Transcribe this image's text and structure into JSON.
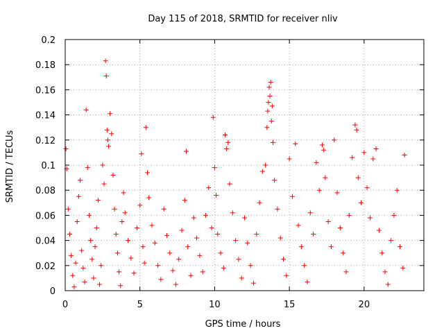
{
  "chart_data": {
    "type": "scatter",
    "title": "Day 115 of 2018, SRMTID for receiver nliv",
    "xlabel": "GPS time / hours",
    "ylabel": "SRMTID / TECUs",
    "xlim": [
      0,
      24
    ],
    "ylim": [
      0,
      0.2
    ],
    "grid": true,
    "marker": "+",
    "series_color": "#ff0000",
    "x_ticks": [
      0,
      5,
      10,
      15,
      20
    ],
    "x_tick_labels": [
      "0",
      "5",
      "10",
      "15",
      "20"
    ],
    "y_ticks": [
      0,
      0.02,
      0.04,
      0.06,
      0.08,
      0.1,
      0.12,
      0.14,
      0.16,
      0.18,
      0.2
    ],
    "y_tick_labels": [
      "0",
      "0.02",
      "0.04",
      "0.06",
      "0.08",
      "0.1",
      "0.12",
      "0.14",
      "0.16",
      "0.18",
      "0.2"
    ],
    "points": [
      [
        0.05,
        0.113
      ],
      [
        0.1,
        0.097
      ],
      [
        0.2,
        0.065
      ],
      [
        0.3,
        0.045
      ],
      [
        0.4,
        0.028
      ],
      [
        0.5,
        0.012
      ],
      [
        0.6,
        0.003
      ],
      [
        0.7,
        0.022
      ],
      [
        0.8,
        0.055
      ],
      [
        0.9,
        0.075
      ],
      [
        1.0,
        0.088
      ],
      [
        1.1,
        0.032
      ],
      [
        1.2,
        0.018
      ],
      [
        1.3,
        0.007
      ],
      [
        1.4,
        0.144
      ],
      [
        1.5,
        0.098
      ],
      [
        1.6,
        0.06
      ],
      [
        1.7,
        0.04
      ],
      [
        1.8,
        0.025
      ],
      [
        1.9,
        0.01
      ],
      [
        2.0,
        0.035
      ],
      [
        2.1,
        0.05
      ],
      [
        2.2,
        0.072
      ],
      [
        2.3,
        0.005
      ],
      [
        2.4,
        0.02
      ],
      [
        2.5,
        0.1
      ],
      [
        2.6,
        0.085
      ],
      [
        2.7,
        0.183
      ],
      [
        2.75,
        0.171
      ],
      [
        2.8,
        0.128
      ],
      [
        2.85,
        0.12
      ],
      [
        2.9,
        0.115
      ],
      [
        3.0,
        0.141
      ],
      [
        3.1,
        0.125
      ],
      [
        3.2,
        0.092
      ],
      [
        3.3,
        0.065
      ],
      [
        3.4,
        0.045
      ],
      [
        3.5,
        0.03
      ],
      [
        3.6,
        0.015
      ],
      [
        3.7,
        0.004
      ],
      [
        3.8,
        0.055
      ],
      [
        3.9,
        0.078
      ],
      [
        4.0,
        0.062
      ],
      [
        4.2,
        0.04
      ],
      [
        4.4,
        0.026
      ],
      [
        4.6,
        0.014
      ],
      [
        4.8,
        0.05
      ],
      [
        5.0,
        0.068
      ],
      [
        5.1,
        0.109
      ],
      [
        5.2,
        0.035
      ],
      [
        5.3,
        0.022
      ],
      [
        5.4,
        0.13
      ],
      [
        5.5,
        0.094
      ],
      [
        5.6,
        0.074
      ],
      [
        5.8,
        0.052
      ],
      [
        6.0,
        0.038
      ],
      [
        6.2,
        0.02
      ],
      [
        6.4,
        0.009
      ],
      [
        6.6,
        0.065
      ],
      [
        6.8,
        0.044
      ],
      [
        7.0,
        0.03
      ],
      [
        7.2,
        0.016
      ],
      [
        7.4,
        0.005
      ],
      [
        7.6,
        0.025
      ],
      [
        7.8,
        0.048
      ],
      [
        8.0,
        0.072
      ],
      [
        8.1,
        0.111
      ],
      [
        8.2,
        0.035
      ],
      [
        8.4,
        0.012
      ],
      [
        8.6,
        0.058
      ],
      [
        8.8,
        0.042
      ],
      [
        9.0,
        0.028
      ],
      [
        9.2,
        0.015
      ],
      [
        9.4,
        0.06
      ],
      [
        9.6,
        0.082
      ],
      [
        9.8,
        0.05
      ],
      [
        9.9,
        0.138
      ],
      [
        10.0,
        0.098
      ],
      [
        10.1,
        0.076
      ],
      [
        10.2,
        0.045
      ],
      [
        10.4,
        0.03
      ],
      [
        10.6,
        0.018
      ],
      [
        10.7,
        0.124
      ],
      [
        10.8,
        0.113
      ],
      [
        10.9,
        0.118
      ],
      [
        11.0,
        0.085
      ],
      [
        11.2,
        0.062
      ],
      [
        11.4,
        0.04
      ],
      [
        11.6,
        0.025
      ],
      [
        11.8,
        0.01
      ],
      [
        12.0,
        0.058
      ],
      [
        12.2,
        0.038
      ],
      [
        12.4,
        0.02
      ],
      [
        12.6,
        0.006
      ],
      [
        12.8,
        0.045
      ],
      [
        13.0,
        0.07
      ],
      [
        13.2,
        0.095
      ],
      [
        13.4,
        0.1
      ],
      [
        13.5,
        0.13
      ],
      [
        13.55,
        0.143
      ],
      [
        13.6,
        0.15
      ],
      [
        13.65,
        0.162
      ],
      [
        13.7,
        0.155
      ],
      [
        13.75,
        0.166
      ],
      [
        13.8,
        0.135
      ],
      [
        13.85,
        0.147
      ],
      [
        13.9,
        0.118
      ],
      [
        14.0,
        0.088
      ],
      [
        14.2,
        0.065
      ],
      [
        14.4,
        0.042
      ],
      [
        14.6,
        0.025
      ],
      [
        14.8,
        0.012
      ],
      [
        15.0,
        0.105
      ],
      [
        15.2,
        0.075
      ],
      [
        15.4,
        0.117
      ],
      [
        15.6,
        0.052
      ],
      [
        15.8,
        0.035
      ],
      [
        16.0,
        0.02
      ],
      [
        16.2,
        0.007
      ],
      [
        16.4,
        0.062
      ],
      [
        16.6,
        0.045
      ],
      [
        16.8,
        0.102
      ],
      [
        17.0,
        0.08
      ],
      [
        17.2,
        0.116
      ],
      [
        17.3,
        0.112
      ],
      [
        17.4,
        0.09
      ],
      [
        17.6,
        0.055
      ],
      [
        17.8,
        0.035
      ],
      [
        18.0,
        0.12
      ],
      [
        18.2,
        0.078
      ],
      [
        18.4,
        0.05
      ],
      [
        18.6,
        0.03
      ],
      [
        18.8,
        0.015
      ],
      [
        19.0,
        0.06
      ],
      [
        19.2,
        0.106
      ],
      [
        19.4,
        0.132
      ],
      [
        19.5,
        0.128
      ],
      [
        19.6,
        0.09
      ],
      [
        19.8,
        0.07
      ],
      [
        20.0,
        0.11
      ],
      [
        20.2,
        0.082
      ],
      [
        20.4,
        0.058
      ],
      [
        20.6,
        0.105
      ],
      [
        20.8,
        0.113
      ],
      [
        21.0,
        0.048
      ],
      [
        21.2,
        0.03
      ],
      [
        21.4,
        0.015
      ],
      [
        21.6,
        0.005
      ],
      [
        21.8,
        0.04
      ],
      [
        22.0,
        0.06
      ],
      [
        22.2,
        0.08
      ],
      [
        22.4,
        0.035
      ],
      [
        22.6,
        0.018
      ],
      [
        22.7,
        0.108
      ]
    ]
  }
}
